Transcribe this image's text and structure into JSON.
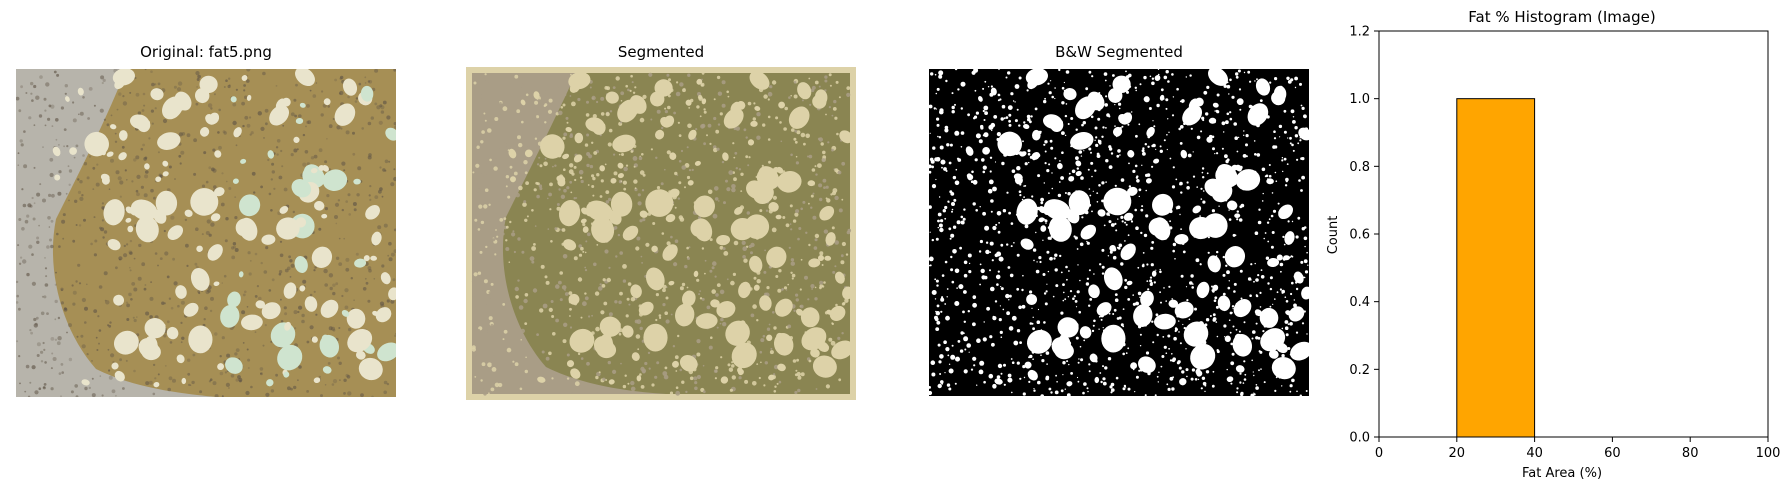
{
  "panels": {
    "original": {
      "title": "Original: fat5.png"
    },
    "segmented": {
      "title": "Segmented"
    },
    "bw": {
      "title": "B&W Segmented"
    }
  },
  "palette": {
    "tissue_olive": "#a68f55",
    "tissue_gray": "#b7b4ab",
    "fat_cream": "#e9e4cc",
    "fat_mint": "#cfe4cf",
    "nucleus": "#5f5446",
    "seg_border": "#ddd2a8",
    "seg_olive": "#8a8552",
    "seg_taupe": "#a99d86",
    "seg_cream": "#ddd2a8",
    "bw_black": "#000000",
    "bw_white": "#ffffff",
    "bar_fill": "#ffa500",
    "bar_edge": "#000000"
  },
  "chart_data": {
    "type": "bar",
    "title": "Fat % Histogram (Image)",
    "xlabel": "Fat Area (%)",
    "ylabel": "Count",
    "xlim": [
      0,
      100
    ],
    "ylim": [
      0,
      1.2
    ],
    "xticks": [
      "0",
      "20",
      "40",
      "60",
      "80",
      "100"
    ],
    "yticks": [
      "0.0",
      "0.2",
      "0.4",
      "0.6",
      "0.8",
      "1.0",
      "1.2"
    ],
    "bins": [
      {
        "start": 0,
        "end": 20,
        "count": 0
      },
      {
        "start": 20,
        "end": 40,
        "count": 1
      },
      {
        "start": 40,
        "end": 60,
        "count": 0
      },
      {
        "start": 60,
        "end": 80,
        "count": 0
      },
      {
        "start": 80,
        "end": 100,
        "count": 0
      }
    ],
    "grid": false
  }
}
